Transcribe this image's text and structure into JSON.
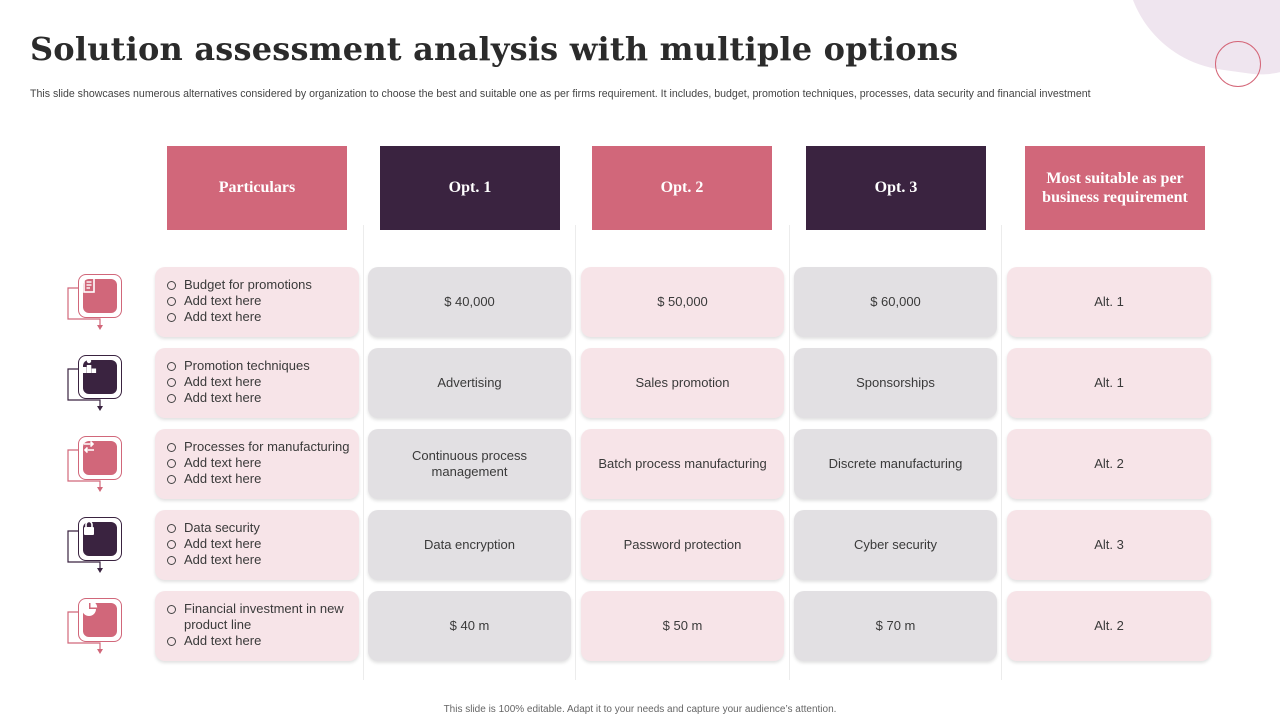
{
  "slide": {
    "title": "Solution assessment analysis with multiple options",
    "subtitle": "This slide showcases numerous alternatives considered by organization to choose the best and suitable one as per firms requirement. It includes, budget, promotion techniques, processes,  data security and financial investment",
    "footer": "This slide is 100% editable. Adapt it to your needs and capture your audience’s attention."
  },
  "colors": {
    "pink": "#d1677a",
    "dark": "#3a2340",
    "pink_light": "#f7e4e8",
    "grey": "#e2e0e3"
  },
  "headers": [
    "Particulars",
    "Opt. 1",
    "Opt. 2",
    "Opt. 3",
    "Most suitable as per business requirement"
  ],
  "rows": [
    {
      "icon": "document-icon",
      "particulars": [
        "Budget for promotions",
        "Add text here",
        "Add text here"
      ],
      "opt1": "$ 40,000",
      "opt2": "$ 50,000",
      "opt3": "$ 60,000",
      "suitable": "Alt. 1"
    },
    {
      "icon": "podium-icon",
      "particulars": [
        "Promotion techniques",
        "Add text here",
        "Add text here"
      ],
      "opt1": "Advertising",
      "opt2": "Sales promotion",
      "opt3": "Sponsorships",
      "suitable": "Alt. 1"
    },
    {
      "icon": "process-arrows-icon",
      "particulars": [
        "Processes for manufacturing",
        "Add text here",
        "Add text here"
      ],
      "opt1": "Continuous process management",
      "opt2": "Batch process manufacturing",
      "opt3": "Discrete manufacturing",
      "suitable": "Alt. 2"
    },
    {
      "icon": "lock-icon",
      "particulars": [
        "Data security",
        "Add text here",
        "Add text here"
      ],
      "opt1": "Data encryption",
      "opt2": "Password protection",
      "opt3": "Cyber security",
      "suitable": "Alt. 3"
    },
    {
      "icon": "pie-chart-icon",
      "particulars": [
        "Financial investment in new product line",
        "Add text here"
      ],
      "opt1": "$ 40 m",
      "opt2": "$ 50 m",
      "opt3": "$ 70 m",
      "suitable": "Alt. 2"
    }
  ]
}
